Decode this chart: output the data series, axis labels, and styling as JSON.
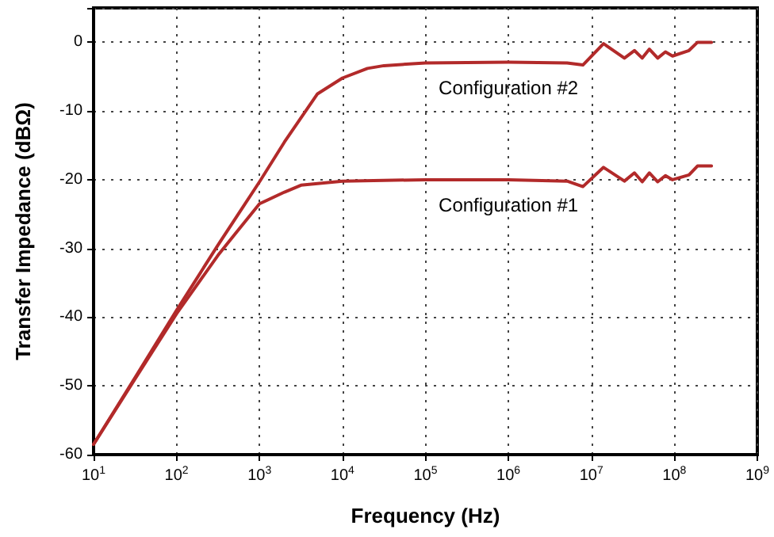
{
  "chart_data": {
    "type": "line",
    "xlabel": "Frequency (Hz)",
    "ylabel": "Transfer Impedance (dBΩ)",
    "log": "x",
    "grid": true,
    "legend": false,
    "marker": "none",
    "line_style": "solid",
    "xlim": [
      10,
      1000000000
    ],
    "ylim": [
      -60,
      5
    ],
    "xticks": [
      {
        "value": 10,
        "label": "10$^{1}$"
      },
      {
        "value": 100,
        "label": "10$^{2}$"
      },
      {
        "value": 1000,
        "label": "10$^{3}$"
      },
      {
        "value": 10000,
        "label": "10$^{4}$"
      },
      {
        "value": 100000,
        "label": "10$^{5}$"
      },
      {
        "value": 1000000,
        "label": "10$^{6}$"
      },
      {
        "value": 10000000,
        "label": "10$^{7}$"
      },
      {
        "value": 100000000,
        "label": "10$^{8}$"
      },
      {
        "value": 1000000000,
        "label": "10$^{9}$"
      }
    ],
    "yticks": [
      -60,
      -50,
      -40,
      -30,
      -20,
      -10,
      0
    ],
    "series": [
      {
        "name": "Configuration #2",
        "color": "#b22a2a",
        "x": [
          10,
          31.6,
          100,
          316,
          1000,
          2000,
          5000,
          10000,
          20000,
          31623,
          100000,
          1000000,
          5100000,
          7900000,
          14000000,
          25000000,
          33000000,
          41000000,
          50000000,
          63000000,
          78000000,
          95000000,
          150000000,
          190000000,
          280000000
        ],
        "values": [
          -58.5,
          -48.8,
          -39,
          -29.5,
          -20.3,
          -14.5,
          -7.5,
          -5.2,
          -3.8,
          -3.4,
          -3,
          -2.9,
          -3,
          -3.3,
          -0.2,
          -2.3,
          -1.2,
          -2.3,
          -1,
          -2.3,
          -1.4,
          -2,
          -1.2,
          0,
          0
        ]
      },
      {
        "name": "Configuration #1",
        "color": "#b22a2a",
        "x": [
          10,
          31.6,
          100,
          316,
          500,
          1000,
          2000,
          3162,
          10000,
          100000,
          1000000,
          5100000,
          7900000,
          14000000,
          25000000,
          33000000,
          41000000,
          50000000,
          63000000,
          78000000,
          95000000,
          150000000,
          190000000,
          280000000
        ],
        "values": [
          -58.5,
          -49,
          -39.5,
          -31,
          -28,
          -23.5,
          -21.8,
          -20.8,
          -20.2,
          -20,
          -20,
          -20.2,
          -21,
          -18.2,
          -20.2,
          -19,
          -20.3,
          -19,
          -20.3,
          -19.4,
          -20,
          -19.3,
          -18,
          -18
        ]
      }
    ]
  }
}
